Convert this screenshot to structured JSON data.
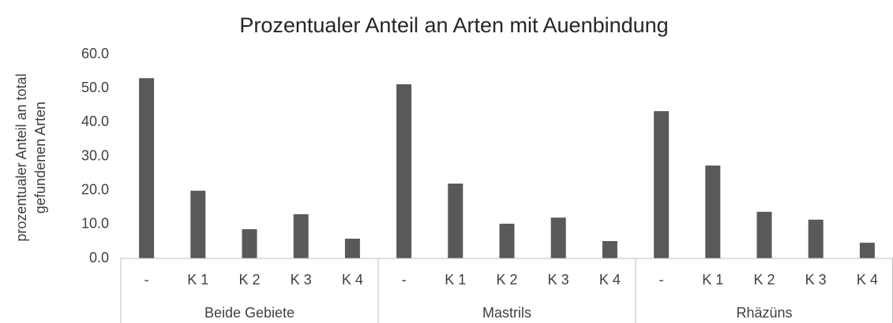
{
  "chart_data": {
    "type": "bar",
    "title": "Prozentualer Anteil an Arten mit Auenbindung",
    "ylabel": [
      "prozentualer Anteil an total",
      "gefundenen Arten"
    ],
    "groups": [
      "Beide Gebiete",
      "Mastrils",
      "Rhäzüns"
    ],
    "categories": [
      "-",
      "K 1",
      "K 2",
      "K 3",
      "K 4",
      "-",
      "K 1",
      "K 2",
      "K 3",
      "K 4",
      "-",
      "K 1",
      "K 2",
      "K 3",
      "K 4"
    ],
    "values": [
      53.0,
      19.9,
      8.6,
      13.0,
      5.8,
      51.2,
      22.0,
      10.2,
      12.0,
      5.1,
      43.3,
      27.3,
      13.7,
      11.4,
      4.6
    ],
    "color": "#595959",
    "ylim": [
      0,
      60
    ],
    "yticks": [
      {
        "value": 0,
        "label": "0.0"
      },
      {
        "value": 10,
        "label": "10.0"
      },
      {
        "value": 20,
        "label": "20.0"
      },
      {
        "value": 30,
        "label": "30.0"
      },
      {
        "value": 40,
        "label": "40.0"
      },
      {
        "value": 50,
        "label": "50.0"
      },
      {
        "value": 60,
        "label": "60.0"
      }
    ],
    "grid": false
  }
}
